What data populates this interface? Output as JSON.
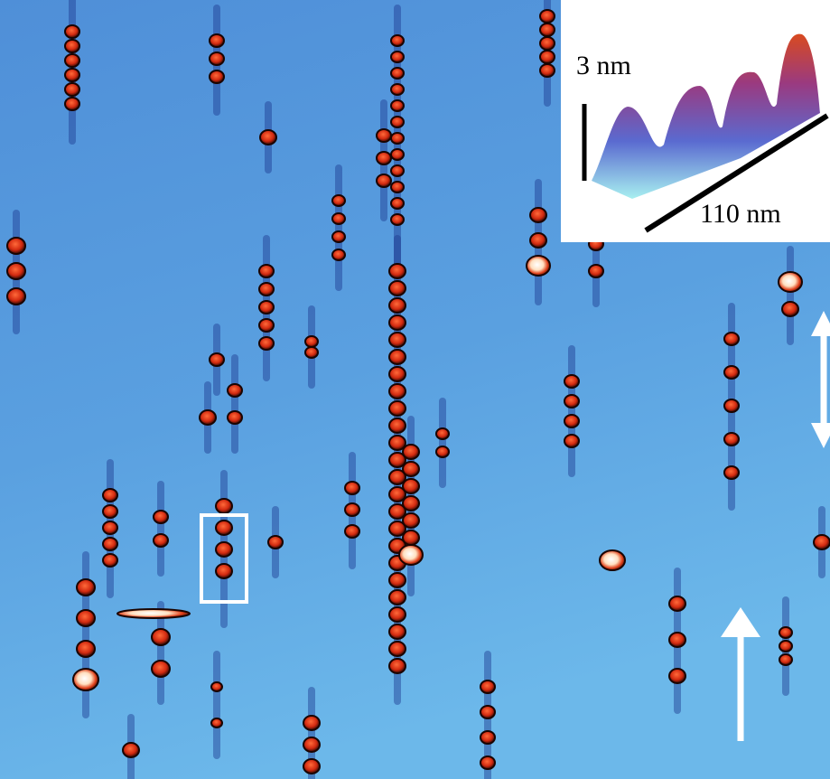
{
  "inset": {
    "height_label": "3 nm",
    "length_label": "110 nm"
  }
}
